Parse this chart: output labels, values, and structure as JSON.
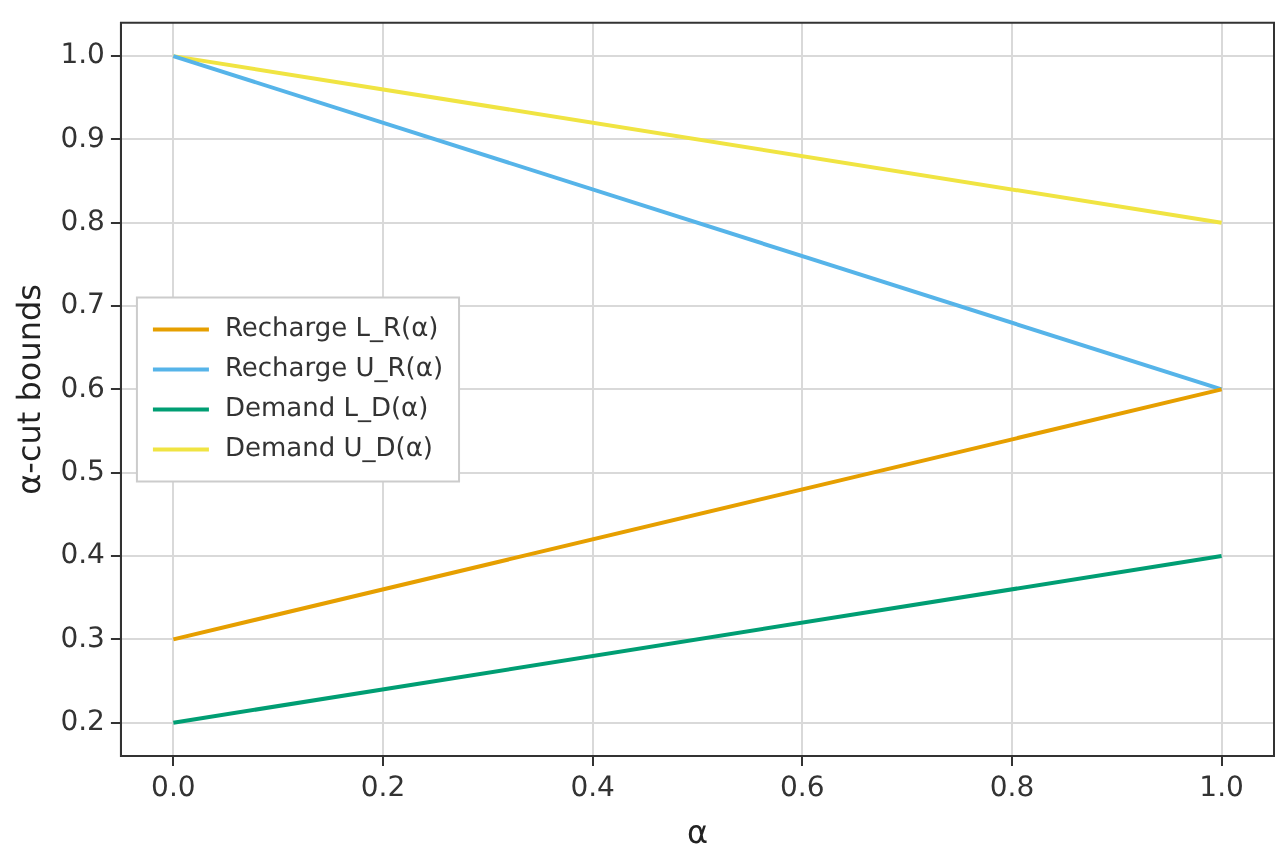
{
  "chart_data": {
    "type": "line",
    "xlabel": "α",
    "ylabel": "α-cut bounds",
    "x": [
      0,
      1
    ],
    "series": [
      {
        "name": "Recharge L_R(α)",
        "color": "#e69f00",
        "values": [
          0.3,
          0.6
        ]
      },
      {
        "name": "Recharge U_R(α)",
        "color": "#56b4e9",
        "values": [
          1.0,
          0.6
        ]
      },
      {
        "name": "Demand L_D(α)",
        "color": "#009e73",
        "values": [
          0.2,
          0.4
        ]
      },
      {
        "name": "Demand U_D(α)",
        "color": "#f0e442",
        "values": [
          1.0,
          0.8
        ]
      }
    ],
    "xlim": [
      -0.05,
      1.05
    ],
    "xticks": [
      {
        "value": 0,
        "label": "0.0"
      },
      {
        "value": 0.2,
        "label": "0.2"
      },
      {
        "value": 0.4,
        "label": "0.4"
      },
      {
        "value": 0.6,
        "label": "0.6"
      },
      {
        "value": 0.8,
        "label": "0.8"
      },
      {
        "value": 1,
        "label": "1.0"
      }
    ],
    "ylim": [
      0.16,
      1.04
    ],
    "yticks": [
      {
        "value": 0.2,
        "label": "0.2"
      },
      {
        "value": 0.3,
        "label": "0.3"
      },
      {
        "value": 0.4,
        "label": "0.4"
      },
      {
        "value": 0.5,
        "label": "0.5"
      },
      {
        "value": 0.6,
        "label": "0.6"
      },
      {
        "value": 0.7,
        "label": "0.7"
      },
      {
        "value": 0.8,
        "label": "0.8"
      },
      {
        "value": 0.9,
        "label": "0.9"
      },
      {
        "value": 1,
        "label": "1.0"
      }
    ],
    "grid": true,
    "legend": "left",
    "line_style": "solid",
    "marker": "none"
  }
}
